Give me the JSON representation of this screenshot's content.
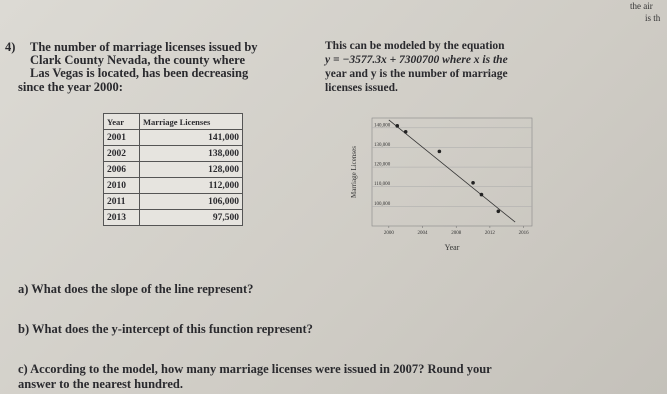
{
  "corner_notes": [
    "the air",
    "is th"
  ],
  "problem": {
    "number": "4)",
    "intro_lines": [
      "The number of marriage licenses issued by",
      "Clark County Nevada, the county where",
      "Las Vegas is located, has been decreasing",
      "since the year 2000:"
    ],
    "model_lines": [
      "This can be modeled by the equation",
      "y = −3577.3x + 7300700 where x is the",
      "year and y is the number of marriage",
      "licenses issued."
    ]
  },
  "table": {
    "header": [
      "Year",
      "Marriage Licenses"
    ],
    "rows": [
      [
        "2001",
        "141,000"
      ],
      [
        "2002",
        "138,000"
      ],
      [
        "2006",
        "128,000"
      ],
      [
        "2010",
        "112,000"
      ],
      [
        "2011",
        "106,000"
      ],
      [
        "2013",
        "97,500"
      ]
    ]
  },
  "graph": {
    "y_label": "Marriage Licenses",
    "x_label": "Year",
    "x": [
      2001,
      2002,
      2006,
      2010,
      2011,
      2013
    ],
    "y": [
      141000,
      138000,
      128000,
      112000,
      106000,
      97500
    ],
    "xlim": [
      1998,
      2017
    ],
    "ylim": [
      90000,
      145000
    ],
    "xticks": [
      2000,
      2004,
      2008,
      2012,
      2016
    ],
    "yticks": [
      {
        "value": 100000,
        "label": "100,000"
      },
      {
        "value": 110000,
        "label": "110,000"
      },
      {
        "value": 120000,
        "label": "120,000"
      },
      {
        "value": 130000,
        "label": "130,000"
      },
      {
        "value": 140000,
        "label": "140,000"
      }
    ]
  },
  "questions": [
    "a) What does the slope of the line represent?",
    "b) What does the y-intercept of this function represent?",
    "c) According to the model, how many marriage licenses were issued in 2007?  Round your",
    "answer to the nearest hundred."
  ]
}
